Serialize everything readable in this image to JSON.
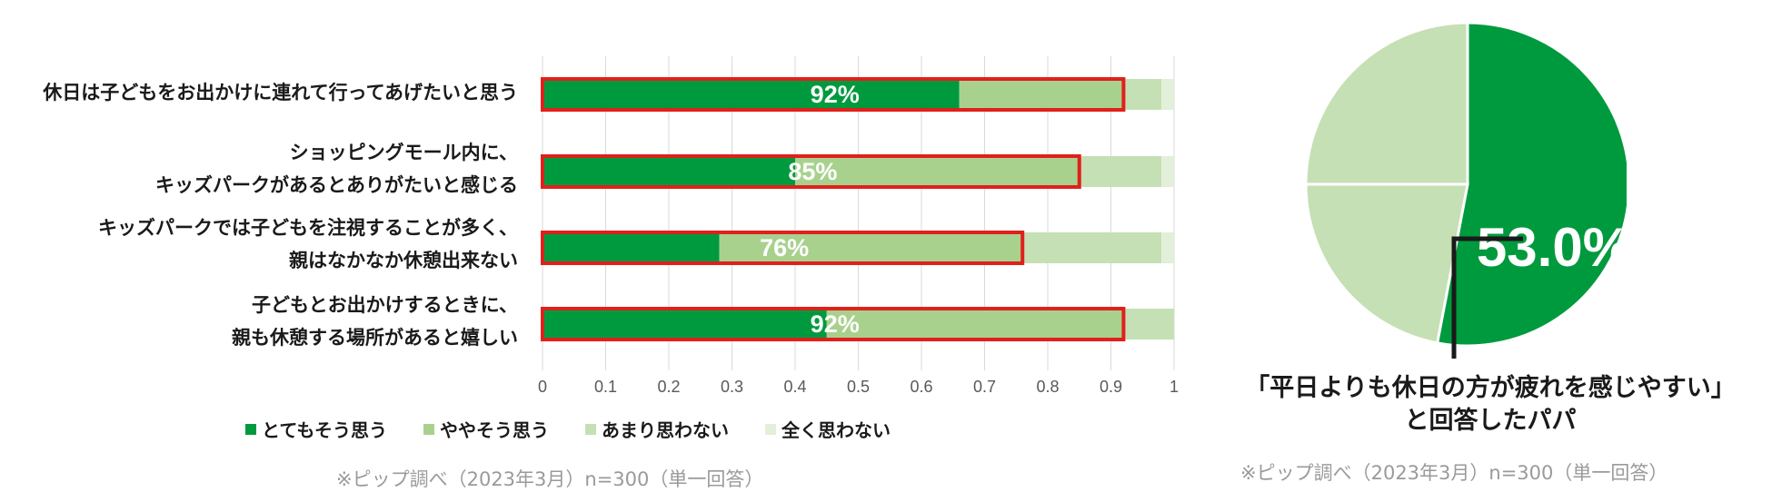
{
  "chart_data": [
    {
      "type": "bar",
      "stacked": true,
      "orientation": "horizontal",
      "categories": [
        [
          "休日は子どもをお出かけに連れて行ってあげたいと思う"
        ],
        [
          "ショッピングモール内に、",
          "キッズパークがあるとありがたいと感じる"
        ],
        [
          "キッズパークでは子どもを注視することが多く、",
          "親はなかなか休憩出来ない"
        ],
        [
          "子どもとお出かけするときに、",
          "親も休憩する場所があると嬉しい"
        ]
      ],
      "series": [
        {
          "name": "とてもそう思う",
          "color": "#009a3e",
          "values": [
            0.66,
            0.4,
            0.28,
            0.45
          ]
        },
        {
          "name": "ややそう思う",
          "color": "#a9d18e",
          "values": [
            0.26,
            0.45,
            0.48,
            0.47
          ]
        },
        {
          "name": "あまり思わない",
          "color": "#c5e0b4",
          "values": [
            0.06,
            0.13,
            0.22,
            0.08
          ]
        },
        {
          "name": "全く思わない",
          "color": "#e2efd9",
          "values": [
            0.02,
            0.02,
            0.02,
            0.0
          ]
        }
      ],
      "highlight_labels": [
        "92%",
        "85%",
        "76%",
        "92%"
      ],
      "highlight_color": "#e0201b",
      "xlim": [
        0,
        1
      ],
      "xticks": [
        "0",
        "0.1",
        "0.2",
        "0.3",
        "0.4",
        "0.5",
        "0.6",
        "0.7",
        "0.8",
        "0.9",
        "1"
      ],
      "grid": true,
      "legend_position": "bottom"
    },
    {
      "type": "pie",
      "values": [
        53.0,
        22.0,
        25.0
      ],
      "colors": [
        "#009a3e",
        "#c5e0b4",
        "#c5e0b4"
      ],
      "label": "53.0%",
      "caption": [
        "「平日よりも休日の方が疲れを感じやすい」",
        "と回答したパパ"
      ]
    }
  ],
  "notes": {
    "bar_source": "※ピップ調べ（2023年3月）n=300（単一回答）",
    "pie_source": "※ピップ調べ（2023年3月）n=300（単一回答）"
  }
}
